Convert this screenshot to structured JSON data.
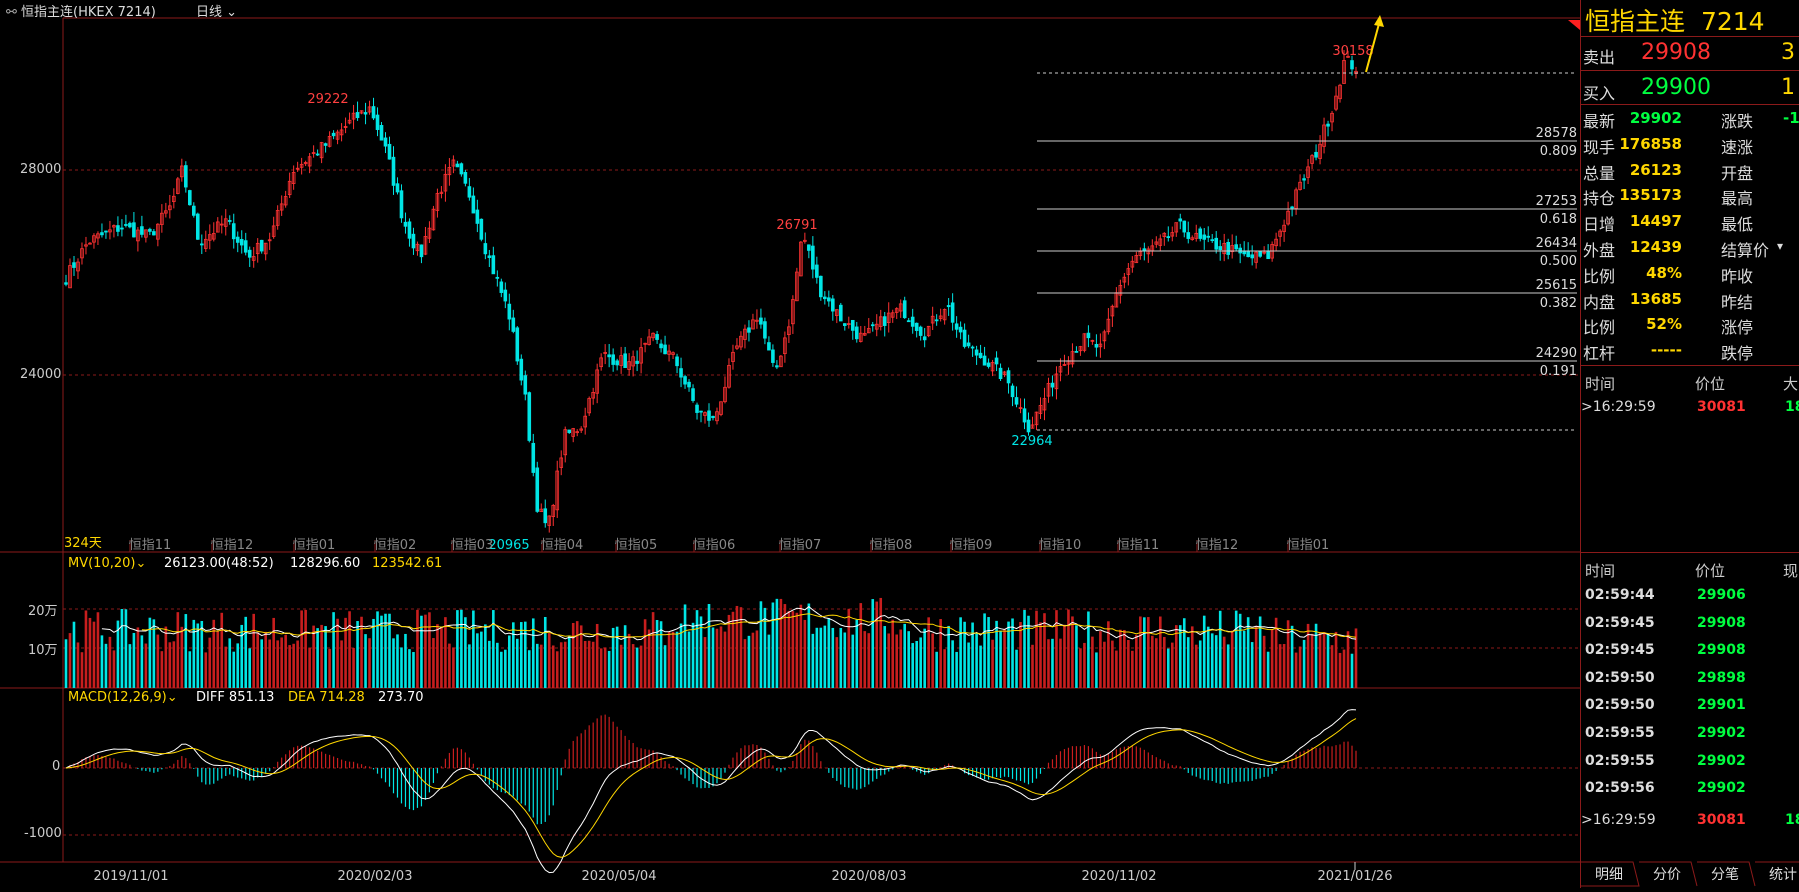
{
  "header": {
    "instrument": "恒指主连(HKEX 7214)",
    "period": "日线",
    "count_label": "324天"
  },
  "colors": {
    "up": "#ff3232",
    "down": "#00e5e5",
    "grid": "#8b1a1a",
    "ma_white": "#ffffff",
    "ma_yellow": "#ffd700",
    "annotation_arrow": "#ffd700"
  },
  "price_axis": {
    "ticks": [
      "28000",
      "24000"
    ]
  },
  "month_labels": [
    "恒指11",
    "恒指12",
    "恒指01",
    "恒指02",
    "恒指03",
    "恒指04",
    "恒指05",
    "恒指06",
    "恒指07",
    "恒指08",
    "恒指09",
    "恒指10",
    "恒指11",
    "恒指12",
    "恒指01"
  ],
  "date_labels": [
    "2019/11/01",
    "2020/02/03",
    "2020/05/04",
    "2020/08/03",
    "2020/11/02",
    "2021/01/26"
  ],
  "peaks": {
    "p1": "29222",
    "p2": "26791",
    "p3": "30158",
    "low1": "20965",
    "low2": "22964"
  },
  "fibonacci": [
    {
      "price": "28578",
      "ratio": "0.809"
    },
    {
      "price": "27253",
      "ratio": "0.618"
    },
    {
      "price": "26434",
      "ratio": "0.500"
    },
    {
      "price": "25615",
      "ratio": "0.382"
    },
    {
      "price": "24290",
      "ratio": "0.191"
    }
  ],
  "volume": {
    "legend_name": "MV(10,20)",
    "v1": "26123.00(48:52)",
    "v2": "128296.60",
    "v3": "123542.61",
    "ticks": [
      "20万",
      "10万"
    ]
  },
  "macd": {
    "legend_name": "MACD(12,26,9)",
    "diff": "DIFF 851.13",
    "dea": "DEA 714.28",
    "macd": "273.70",
    "ticks": [
      "0",
      "-1000"
    ]
  },
  "quote": {
    "name": "恒指主连",
    "code": "7214",
    "sell_label": "卖出",
    "sell_price": "29908",
    "sell_qty": "3",
    "buy_label": "买入",
    "buy_price": "29900",
    "buy_qty": "1",
    "rows": [
      {
        "l1": "最新",
        "v1": "29902",
        "l2": "涨跌",
        "v2": "-1"
      },
      {
        "l1": "现手",
        "v1": "176858",
        "l2": "速涨",
        "v2": ""
      },
      {
        "l1": "总量",
        "v1": "26123",
        "l2": "开盘",
        "v2": ""
      },
      {
        "l1": "持仓",
        "v1": "135173",
        "l2": "最高",
        "v2": ""
      },
      {
        "l1": "日增",
        "v1": "14497",
        "l2": "最低",
        "v2": ""
      },
      {
        "l1": "外盘",
        "v1": "12439",
        "l2": "结算价",
        "v2": ""
      },
      {
        "l1": "比例",
        "v1": "48%",
        "l2": "昨收",
        "v2": ""
      },
      {
        "l1": "内盘",
        "v1": "13685",
        "l2": "昨结",
        "v2": ""
      },
      {
        "l1": "比例",
        "v1": "52%",
        "l2": "涨停",
        "v2": ""
      },
      {
        "l1": "杠杆",
        "v1": "-----",
        "l2": "跌停",
        "v2": ""
      }
    ]
  },
  "ticks_top": {
    "col_time": "时间",
    "col_price": "价位",
    "col_vol": "大",
    "row": {
      "time": ">16:29:59",
      "price": "30081",
      "vol": "18"
    }
  },
  "ticks_list": {
    "col_time": "时间",
    "col_price": "价位",
    "col_vol": "现",
    "rows": [
      {
        "time": "02:59:44",
        "price": "29906"
      },
      {
        "time": "02:59:45",
        "price": "29908"
      },
      {
        "time": "02:59:45",
        "price": "29908"
      },
      {
        "time": "02:59:50",
        "price": "29898"
      },
      {
        "time": "02:59:50",
        "price": "29901"
      },
      {
        "time": "02:59:55",
        "price": "29902"
      },
      {
        "time": "02:59:55",
        "price": "29902"
      },
      {
        "time": "02:59:56",
        "price": "29902"
      }
    ],
    "last": {
      "time": ">16:29:59",
      "price": "30081",
      "vol": "18"
    }
  },
  "tabs": [
    "明细",
    "分价",
    "分笔",
    "统计"
  ]
}
